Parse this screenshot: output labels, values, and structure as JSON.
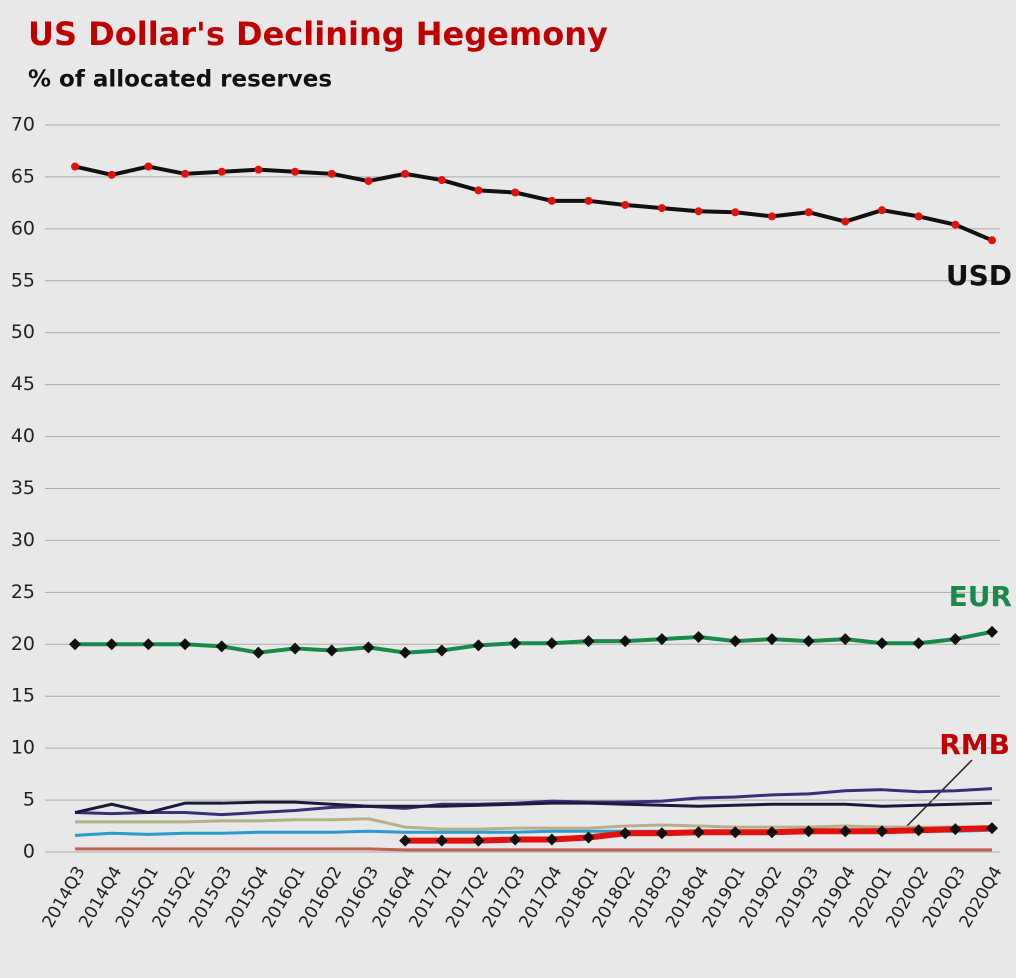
{
  "chart_data": {
    "type": "line",
    "title": "US Dollar's  Declining Hegemony",
    "subtitle": "% of allocated reserves",
    "categories": [
      "2014Q3",
      "2014Q4",
      "2015Q1",
      "2015Q2",
      "2015Q3",
      "2015Q4",
      "2016Q1",
      "2016Q2",
      "2016Q3",
      "2016Q4",
      "2017Q1",
      "2017Q2",
      "2017Q3",
      "2017Q4",
      "2018Q1",
      "2018Q2",
      "2018Q3",
      "2018Q4",
      "2019Q1",
      "2019Q2",
      "2019Q3",
      "2019Q4",
      "2020Q1",
      "2020Q2",
      "2020Q3",
      "2020Q4"
    ],
    "ylim": [
      0,
      70
    ],
    "yticks": [
      0,
      5,
      10,
      15,
      20,
      25,
      30,
      35,
      40,
      45,
      50,
      55,
      60,
      65,
      70
    ],
    "grid": true,
    "series": [
      {
        "color": "#3a2f7a",
        "values": [
          3.8,
          3.7,
          3.8,
          3.8,
          3.6,
          3.8,
          4.0,
          4.3,
          4.4,
          4.2,
          4.6,
          4.6,
          4.7,
          4.9,
          4.8,
          4.8,
          4.9,
          5.2,
          5.3,
          5.5,
          5.6,
          5.9,
          6.0,
          5.8,
          5.9,
          6.1
        ]
      },
      {
        "color": "#1a1a3a",
        "values": [
          3.8,
          4.6,
          3.8,
          4.7,
          4.7,
          4.8,
          4.8,
          4.6,
          4.4,
          4.4,
          4.4,
          4.5,
          4.6,
          4.7,
          4.7,
          4.6,
          4.5,
          4.4,
          4.5,
          4.6,
          4.6,
          4.6,
          4.4,
          4.5,
          4.6,
          4.7
        ]
      },
      {
        "color": "#b5b08a",
        "values": [
          2.9,
          2.9,
          2.9,
          2.9,
          3.0,
          3.0,
          3.1,
          3.1,
          3.2,
          2.4,
          2.2,
          2.2,
          2.3,
          2.3,
          2.3,
          2.5,
          2.6,
          2.5,
          2.4,
          2.4,
          2.4,
          2.5,
          2.4,
          2.4,
          2.4,
          2.4
        ]
      },
      {
        "color": "#2a9ad0",
        "values": [
          1.6,
          1.8,
          1.7,
          1.8,
          1.8,
          1.9,
          1.9,
          1.9,
          2.0,
          1.9,
          1.9,
          1.9,
          1.9,
          2.0,
          2.0,
          2.0,
          2.0,
          1.9,
          1.9,
          1.9,
          1.9,
          1.9,
          1.9,
          2.0,
          2.0,
          2.1
        ]
      },
      {
        "color": "#c06050",
        "values": [
          0.3,
          0.3,
          0.3,
          0.3,
          0.3,
          0.3,
          0.3,
          0.3,
          0.3,
          0.2,
          0.2,
          0.2,
          0.2,
          0.2,
          0.2,
          0.2,
          0.2,
          0.2,
          0.2,
          0.2,
          0.2,
          0.2,
          0.2,
          0.2,
          0.2,
          0.2
        ]
      },
      {
        "name": "RMB",
        "color": "#e31010",
        "marker": "diamond",
        "marker_color": "#111111",
        "values": [
          null,
          null,
          null,
          null,
          null,
          null,
          null,
          null,
          null,
          1.1,
          1.1,
          1.1,
          1.2,
          1.2,
          1.4,
          1.8,
          1.8,
          1.9,
          1.9,
          1.9,
          2.0,
          2.0,
          2.0,
          2.1,
          2.2,
          2.3
        ]
      },
      {
        "name": "EUR",
        "color": "#1a8a4a",
        "marker": "diamond",
        "marker_color": "#111111",
        "values": [
          20.0,
          20.0,
          20.0,
          20.0,
          19.8,
          19.2,
          19.6,
          19.4,
          19.7,
          19.2,
          19.4,
          19.9,
          20.1,
          20.1,
          20.3,
          20.3,
          20.5,
          20.7,
          20.3,
          20.5,
          20.3,
          20.5,
          20.1,
          20.1,
          20.5,
          21.2
        ]
      },
      {
        "name": "USD",
        "color": "#111111",
        "marker": "circle",
        "marker_color": "#e31010",
        "values": [
          66.0,
          65.2,
          66.0,
          65.3,
          65.5,
          65.7,
          65.5,
          65.3,
          64.6,
          65.3,
          64.7,
          63.7,
          63.5,
          62.7,
          62.7,
          62.3,
          62.0,
          61.7,
          61.6,
          61.2,
          61.6,
          60.7,
          61.8,
          61.2,
          60.4,
          58.9
        ]
      }
    ]
  }
}
